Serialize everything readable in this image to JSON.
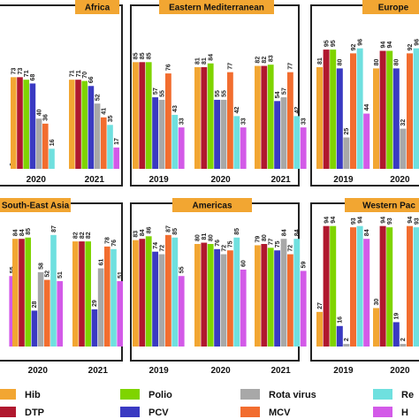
{
  "colors": {
    "Hib": "#F2A632",
    "DTP": "#B0182E",
    "Polio": "#7FD400",
    "PCV": "#3A3AC2",
    "Rota virus": "#A8A8A8",
    "MCV": "#F26D2F",
    "Re": "#6FE0DF",
    "H": "#D35AE8",
    "panel_title_bg": "#F2A632"
  },
  "chart_data": [
    {
      "type": "bar",
      "title": "Africa",
      "categories": [
        "",
        "2020",
        "2021"
      ],
      "series_order": [
        "Hib",
        "DTP",
        "Polio",
        "PCV",
        "Rota virus",
        "MCV",
        "Re",
        "H"
      ],
      "values": [
        [
          null,
          null,
          null,
          null,
          null,
          null,
          null,
          0
        ],
        [
          73,
          73,
          71,
          68,
          40,
          36,
          16,
          null
        ],
        [
          71,
          71,
          70,
          66,
          52,
          41,
          35,
          17
        ]
      ],
      "ylim": [
        0,
        100
      ]
    },
    {
      "type": "bar",
      "title": "Eastern Mediterranean",
      "categories": [
        "2019",
        "2020",
        "2021"
      ],
      "series_order": [
        "Hib",
        "DTP",
        "Polio",
        "PCV",
        "Rota virus",
        "MCV",
        "Re",
        "H"
      ],
      "values": [
        [
          85,
          85,
          85,
          57,
          55,
          76,
          43,
          33
        ],
        [
          81,
          81,
          84,
          55,
          55,
          77,
          42,
          33
        ],
        [
          82,
          82,
          83,
          54,
          57,
          77,
          42,
          33
        ]
      ],
      "ylim": [
        0,
        100
      ]
    },
    {
      "type": "bar",
      "title": "Europe",
      "categories": [
        "2019",
        "2020"
      ],
      "series_order": [
        "Hib",
        "DTP",
        "Polio",
        "PCV",
        "Rota virus",
        "MCV",
        "Re",
        "H"
      ],
      "values": [
        [
          81,
          95,
          95,
          80,
          25,
          92,
          96,
          44
        ],
        [
          80,
          94,
          94,
          80,
          32,
          92,
          96,
          44
        ]
      ],
      "ylim": [
        0,
        100
      ]
    },
    {
      "type": "bar",
      "title": "South-East Asia",
      "categories": [
        "",
        "2020",
        "2021"
      ],
      "series_order": [
        "Hib",
        "DTP",
        "Polio",
        "PCV",
        "Rota virus",
        "MCV",
        "Re",
        "H"
      ],
      "values": [
        [
          null,
          null,
          null,
          null,
          null,
          null,
          null,
          55
        ],
        [
          84,
          84,
          85,
          28,
          58,
          52,
          87,
          51
        ],
        [
          82,
          82,
          82,
          29,
          61,
          78,
          76,
          51
        ]
      ],
      "ylim": [
        0,
        100
      ]
    },
    {
      "type": "bar",
      "title": "Americas",
      "categories": [
        "2019",
        "2020",
        "2021"
      ],
      "series_order": [
        "Hib",
        "DTP",
        "Polio",
        "PCV",
        "Rota virus",
        "MCV",
        "Re",
        "H"
      ],
      "values": [
        [
          83,
          84,
          86,
          74,
          72,
          87,
          85,
          55
        ],
        [
          80,
          81,
          80,
          76,
          72,
          75,
          85,
          60
        ],
        [
          79,
          80,
          77,
          75,
          84,
          72,
          84,
          59
        ]
      ],
      "ylim": [
        0,
        100
      ]
    },
    {
      "type": "bar",
      "title": "Western Pac",
      "categories": [
        "2019",
        "2020"
      ],
      "series_order": [
        "Hib",
        "DTP",
        "Polio",
        "PCV",
        "Rota virus",
        "MCV",
        "Re",
        "H"
      ],
      "values": [
        [
          27,
          94,
          94,
          16,
          2,
          93,
          94,
          84
        ],
        [
          30,
          94,
          93,
          19,
          2,
          94,
          93,
          84
        ]
      ],
      "ylim": [
        0,
        100
      ]
    }
  ],
  "legend": [
    {
      "name": "Hib"
    },
    {
      "name": "Polio"
    },
    {
      "name": "Rota virus"
    },
    {
      "name": "Re"
    },
    {
      "name": "DTP"
    },
    {
      "name": "PCV"
    },
    {
      "name": "MCV"
    },
    {
      "name": "H"
    }
  ]
}
